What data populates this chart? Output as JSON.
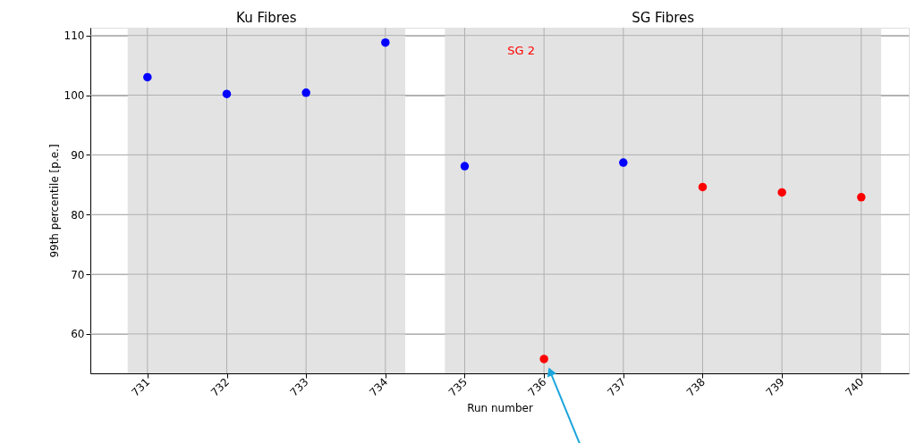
{
  "chart_data": {
    "type": "scatter",
    "xlabel": "Run number",
    "ylabel": "99th percentile [p.e.]",
    "series": [
      {
        "color": "#0000ff",
        "x": [
          731,
          732,
          733,
          734,
          735,
          737
        ],
        "values": [
          103.0,
          100.2,
          100.4,
          108.8,
          88.1,
          88.7
        ]
      },
      {
        "color": "#ff0000",
        "x": [
          736,
          738,
          739,
          740
        ],
        "values": [
          55.8,
          84.6,
          83.7,
          82.9
        ]
      }
    ],
    "xlim": [
      730.28,
      740.6
    ],
    "xticks": [
      731,
      732,
      733,
      734,
      735,
      736,
      737,
      738,
      739,
      740
    ],
    "ylim": [
      53.4,
      111.3
    ],
    "yticks": [
      60,
      70,
      80,
      90,
      100,
      110
    ],
    "bands": [
      {
        "axis": "x",
        "from": 730.75,
        "to": 734.25,
        "label": "Ku Fibres",
        "color": "#e3e3e3"
      },
      {
        "axis": "x",
        "from": 734.75,
        "to": 740.25,
        "label": "SG Fibres",
        "color": "#e3e3e3"
      }
    ],
    "annotations": [
      "SG 2"
    ],
    "grid": true,
    "marker": "circle"
  }
}
